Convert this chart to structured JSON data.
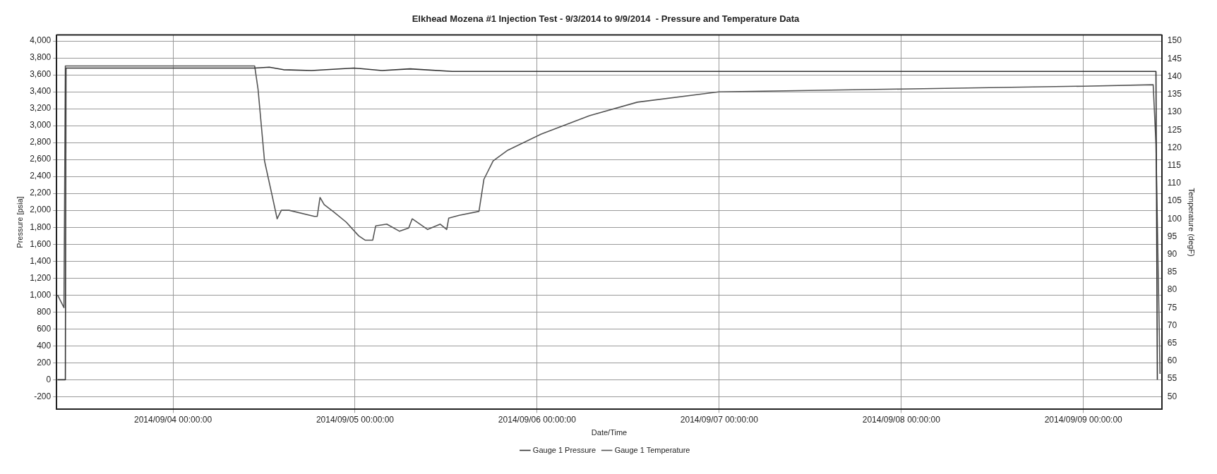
{
  "chart_data": {
    "type": "line",
    "title": "Elkhead Mozena #1 Injection Test - 9/3/2014 to 9/9/2014  - Pressure and Temperature Data",
    "xlabel": "Date/Time",
    "ylabel": "Pressure [psia]",
    "y2label": "Temperature (degF)",
    "xlim": [
      "2014-09-03T08:40",
      "2014-09-09T10:20"
    ],
    "xticks": [
      {
        "value": "2014-09-04T00:00",
        "label": "2014/09/04 00:00:00"
      },
      {
        "value": "2014-09-05T00:00",
        "label": "2014/09/05 00:00:00"
      },
      {
        "value": "2014-09-06T00:00",
        "label": "2014/09/06 00:00:00"
      },
      {
        "value": "2014-09-07T00:00",
        "label": "2014/09/07 00:00:00"
      },
      {
        "value": "2014-09-08T00:00",
        "label": "2014/09/08 00:00:00"
      },
      {
        "value": "2014-09-09T00:00",
        "label": "2014/09/09 00:00:00"
      }
    ],
    "ylim": [
      -350,
      4070
    ],
    "yticks": [
      -200,
      0,
      200,
      400,
      600,
      800,
      {
        "value": 1000,
        "label": "1,000"
      },
      {
        "value": 1200,
        "label": "1,200"
      },
      {
        "value": 1400,
        "label": "1,400"
      },
      {
        "value": 1600,
        "label": "1,600"
      },
      {
        "value": 1800,
        "label": "1,800"
      },
      {
        "value": 2000,
        "label": "2,000"
      },
      {
        "value": 2200,
        "label": "2,200"
      },
      {
        "value": 2400,
        "label": "2,400"
      },
      {
        "value": 2600,
        "label": "2,600"
      },
      {
        "value": 2800,
        "label": "2,800"
      },
      {
        "value": 3000,
        "label": "3,000"
      },
      {
        "value": 3200,
        "label": "3,200"
      },
      {
        "value": 3400,
        "label": "3,400"
      },
      {
        "value": 3600,
        "label": "3,600"
      },
      {
        "value": 3800,
        "label": "3,800"
      },
      {
        "value": 4000,
        "label": "4,000"
      }
    ],
    "y2lim": [
      46.4,
      151.7
    ],
    "y2ticks": [
      50,
      55,
      60,
      65,
      70,
      75,
      80,
      85,
      90,
      95,
      100,
      105,
      110,
      115,
      120,
      125,
      130,
      135,
      140,
      145,
      150
    ],
    "grid": true,
    "legend": "bottom",
    "line_style": "solid",
    "marker": "none",
    "series": [
      {
        "name": "Gauge 1 Pressure",
        "color": "#333333",
        "x": [
          "2014-09-03T08:47",
          "2014-09-03T09:49",
          "2014-09-03T09:54",
          "2014-09-04T10:46",
          "2014-09-04T12:42",
          "2014-09-04T14:34",
          "2014-09-04T18:16",
          "2014-09-04T23:50",
          "2014-09-05T03:33",
          "2014-09-05T07:15",
          "2014-09-05T12:49",
          "2014-09-09T09:34",
          "2014-09-09T09:45"
        ],
        "values": [
          0,
          0,
          3680,
          3680,
          3690,
          3660,
          3650,
          3680,
          3650,
          3670,
          3640,
          3640,
          0
        ]
      },
      {
        "name": "Gauge 1 Temperature",
        "color": "#555555",
        "axis": "y2",
        "x": [
          "2014-09-03T08:47",
          "2014-09-03T09:38",
          "2014-09-03T09:49",
          "2014-09-04T10:46",
          "2014-09-04T11:13",
          "2014-09-04T12:04",
          "2014-09-04T13:05",
          "2014-09-04T13:44",
          "2014-09-04T14:17",
          "2014-09-04T15:18",
          "2014-09-04T18:38",
          "2014-09-04T19:01",
          "2014-09-04T19:23",
          "2014-09-04T19:56",
          "2014-09-04T21:09",
          "2014-09-04T22:49",
          "2014-09-05T00:29",
          "2014-09-05T01:19",
          "2014-09-05T02:20",
          "2014-09-05T02:43",
          "2014-09-05T04:11",
          "2014-09-05T05:52",
          "2014-09-05T07:04",
          "2014-09-05T07:32",
          "2014-09-05T09:34",
          "2014-09-05T11:14",
          "2014-09-05T12:05",
          "2014-09-05T12:21",
          "2014-09-05T13:44",
          "2014-09-05T16:20",
          "2014-09-05T16:59",
          "2014-09-05T18:12",
          "2014-09-05T20:08",
          "2014-09-06T00:30",
          "2014-09-06T06:54",
          "2014-09-06T13:12",
          "2014-09-06T23:58",
          "2014-09-08T00:00",
          "2014-09-09T00:00",
          "2014-09-09T09:12",
          "2014-09-09T09:34",
          "2014-09-09T10:06"
        ],
        "values": [
          78.6,
          75,
          143,
          143,
          136.4,
          116.3,
          106.4,
          100,
          102.4,
          102.4,
          100.7,
          100.7,
          106,
          104,
          102,
          99.1,
          95.2,
          94,
          94,
          98,
          98.5,
          96.5,
          97.4,
          100,
          97,
          98.5,
          97,
          100.2,
          101,
          102.1,
          111.1,
          116.3,
          119.3,
          123.8,
          129,
          132.8,
          135.7,
          136.5,
          137.3,
          137.7,
          121,
          56.4
        ]
      }
    ]
  }
}
